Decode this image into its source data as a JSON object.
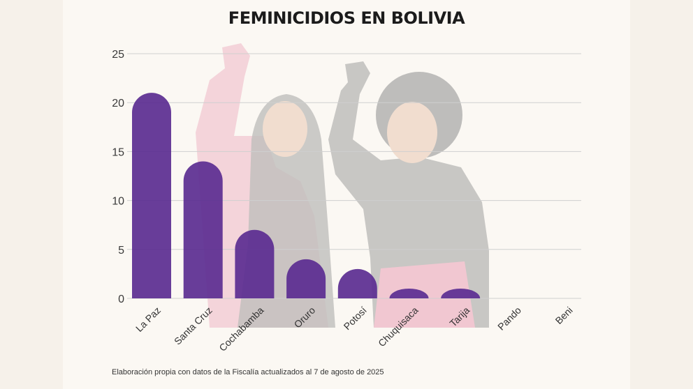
{
  "title": "FEMINICIDIOS EN BOLIVIA",
  "caption": "Elaboración propia con datos de la Fiscalía actualizados al 7 de agosto de 2025",
  "colors": {
    "bar": "#5b2d91",
    "grid": "#cfcfcf",
    "silhouette_gray": "#9a9a9a",
    "silhouette_pink": "#e8a0b4",
    "skin": "#e8c7b0"
  },
  "chart_data": {
    "type": "bar",
    "title": "FEMINICIDIOS EN BOLIVIA",
    "xlabel": "",
    "ylabel": "",
    "categories": [
      "La Paz",
      "Santa Cruz",
      "Cochabamba",
      "Oruro",
      "Potosí",
      "Chuquisaca",
      "Tarija",
      "Pando",
      "Beni"
    ],
    "values": [
      21,
      14,
      7,
      4,
      3,
      1,
      1,
      0,
      0
    ],
    "ylim": [
      0,
      25
    ],
    "yticks": [
      "0",
      "5",
      "10",
      "15",
      "20",
      "25"
    ],
    "grid": true,
    "legend": "none"
  }
}
